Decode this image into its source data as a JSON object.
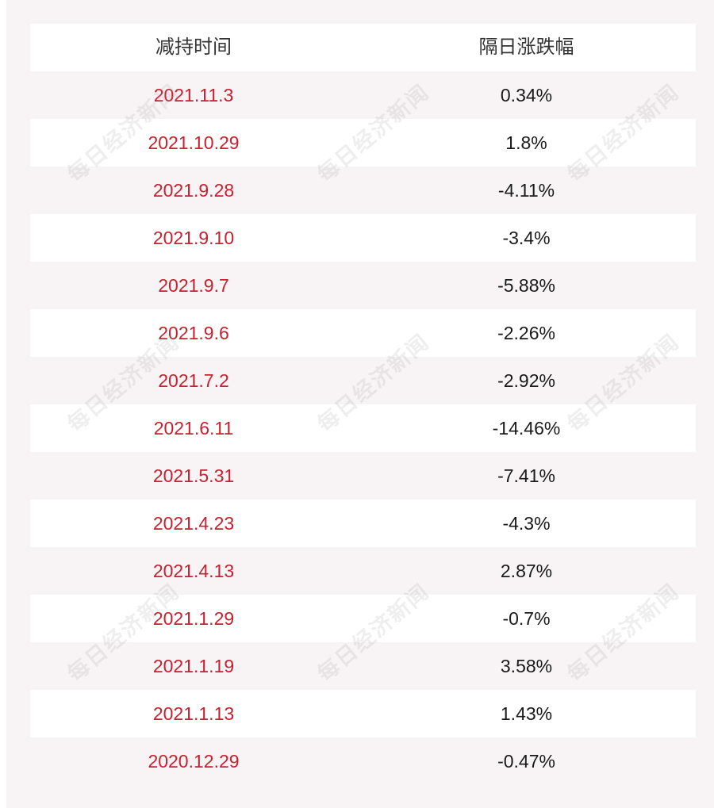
{
  "table": {
    "headers": [
      "减持时间",
      "隔日涨跌幅"
    ],
    "rows": [
      [
        "2021.11.3",
        "0.34%"
      ],
      [
        "2021.10.29",
        "1.8%"
      ],
      [
        "2021.9.28",
        "-4.11%"
      ],
      [
        "2021.9.10",
        "-3.4%"
      ],
      [
        "2021.9.7",
        "-5.88%"
      ],
      [
        "2021.9.6",
        "-2.26%"
      ],
      [
        "2021.7.2",
        "-2.92%"
      ],
      [
        "2021.6.11",
        "-14.46%"
      ],
      [
        "2021.5.31",
        "-7.41%"
      ],
      [
        "2021.4.23",
        "-4.3%"
      ],
      [
        "2021.4.13",
        "2.87%"
      ],
      [
        "2021.1.29",
        "-0.7%"
      ],
      [
        "2021.1.19",
        "3.58%"
      ],
      [
        "2021.1.13",
        "1.43%"
      ],
      [
        "2020.12.29",
        "-0.47%"
      ]
    ]
  },
  "watermark": "每日经济新闻",
  "colors": {
    "date_text": "#c9202f",
    "value_text": "#1a1a1a",
    "row_alt": "#f8f4f5",
    "row_white": "#ffffff"
  }
}
